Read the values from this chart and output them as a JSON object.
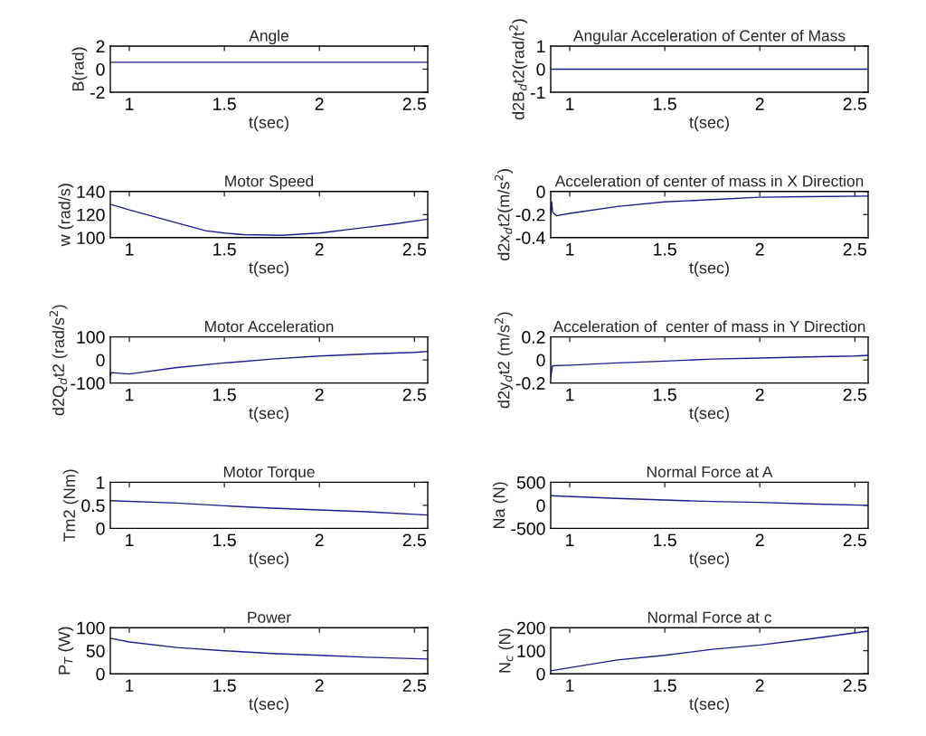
{
  "chart_data": [
    {
      "type": "line",
      "title": "Angle",
      "xlabel": "t(sec)",
      "ylabel": "B(rad)",
      "color": "#1c1c8c",
      "x": [
        0.9,
        2.57
      ],
      "values": [
        0.6,
        0.6
      ],
      "xlim": [
        0.9,
        2.57
      ],
      "xticks": [
        1,
        1.5,
        2,
        2.5
      ],
      "ylim": [
        -2,
        2
      ],
      "yticks": [
        -2,
        0,
        2
      ]
    },
    {
      "type": "line",
      "title": "Angular Acceleration of Center of Mass",
      "xlabel": "t(sec)",
      "ylabel": "d2B$_{d}$t2(rad/t$^{2}$)",
      "color": "#1c1c8c",
      "x": [
        0.9,
        2.57
      ],
      "values": [
        0,
        0
      ],
      "xlim": [
        0.9,
        2.57
      ],
      "xticks": [
        1,
        1.5,
        2,
        2.5
      ],
      "ylim": [
        -1,
        1
      ],
      "yticks": [
        -1,
        0,
        1
      ]
    },
    {
      "type": "line",
      "title": "Motor Speed",
      "xlabel": "t(sec)",
      "ylabel": "w (rad/s)",
      "color": "#1c1c8c",
      "x": [
        0.9,
        1.0,
        1.2,
        1.4,
        1.5,
        1.6,
        1.8,
        2.0,
        2.2,
        2.4,
        2.57
      ],
      "values": [
        129,
        124,
        115,
        106,
        104,
        102.6,
        102,
        104,
        108,
        112,
        116
      ],
      "xlim": [
        0.9,
        2.57
      ],
      "xticks": [
        1,
        1.5,
        2,
        2.5
      ],
      "ylim": [
        100,
        140
      ],
      "yticks": [
        100,
        120,
        140
      ]
    },
    {
      "type": "line",
      "title": "Acceleration of center of mass in X Direction",
      "xlabel": "t(sec)",
      "ylabel": "d2x$_{d}$t2(m/s$^{2}$)",
      "color": "#1c1c8c",
      "x": [
        0.9,
        0.905,
        0.91,
        0.93,
        1.0,
        1.25,
        1.5,
        1.75,
        2.0,
        2.25,
        2.57
      ],
      "values": [
        -0.2,
        -0.09,
        -0.18,
        -0.21,
        -0.19,
        -0.13,
        -0.09,
        -0.07,
        -0.05,
        -0.045,
        -0.04
      ],
      "xlim": [
        0.9,
        2.57
      ],
      "xticks": [
        1,
        1.5,
        2,
        2.5
      ],
      "ylim": [
        -0.4,
        0
      ],
      "yticks": [
        -0.4,
        -0.2,
        0
      ]
    },
    {
      "type": "line",
      "title": "Motor Acceleration",
      "xlabel": "t(sec)",
      "ylabel": "d2Q$_{d}$t2 (rad/s$^{2}$)",
      "color": "#1c1c8c",
      "x": [
        0.9,
        0.905,
        1.0,
        1.25,
        1.5,
        1.75,
        2.0,
        2.25,
        2.5,
        2.57
      ],
      "values": [
        -72,
        -55,
        -61,
        -33,
        -13,
        4,
        17,
        26,
        33,
        37
      ],
      "xlim": [
        0.9,
        2.57
      ],
      "xticks": [
        1,
        1.5,
        2,
        2.5
      ],
      "ylim": [
        -100,
        100
      ],
      "yticks": [
        -100,
        0,
        100
      ]
    },
    {
      "type": "line",
      "title": "Acceleration of  center of mass in Y Direction",
      "xlabel": "t(sec)",
      "ylabel": "d2y$_{d}$t2 (m/s$^{2}$)",
      "color": "#1c1c8c",
      "x": [
        0.9,
        0.91,
        1.0,
        1.25,
        1.5,
        1.75,
        2.0,
        2.25,
        2.5,
        2.57
      ],
      "values": [
        -0.15,
        -0.05,
        -0.045,
        -0.026,
        -0.01,
        0.008,
        0.016,
        0.026,
        0.034,
        0.04
      ],
      "xlim": [
        0.9,
        2.57
      ],
      "xticks": [
        1,
        1.5,
        2,
        2.5
      ],
      "ylim": [
        -0.2,
        0.2
      ],
      "yticks": [
        -0.2,
        0,
        0.2
      ]
    },
    {
      "type": "line",
      "title": "Motor Torque",
      "xlabel": "t(sec)",
      "ylabel": "Tm2 (Nm)",
      "color": "#1c1c8c",
      "x": [
        0.9,
        1.25,
        1.5,
        1.75,
        2.0,
        2.25,
        2.57
      ],
      "values": [
        0.6,
        0.55,
        0.49,
        0.44,
        0.4,
        0.36,
        0.29
      ],
      "xlim": [
        0.9,
        2.57
      ],
      "xticks": [
        1,
        1.5,
        2,
        2.5
      ],
      "ylim": [
        0,
        1
      ],
      "yticks": [
        0,
        0.5,
        1
      ]
    },
    {
      "type": "line",
      "title": "Normal Force at A",
      "xlabel": "t(sec)",
      "ylabel": "Na (N)",
      "color": "#1c1c8c",
      "x": [
        0.9,
        1.25,
        1.5,
        1.75,
        2.0,
        2.25,
        2.57
      ],
      "values": [
        210,
        150,
        115,
        83,
        64,
        32,
        0
      ],
      "xlim": [
        0.9,
        2.57
      ],
      "xticks": [
        1,
        1.5,
        2,
        2.5
      ],
      "ylim": [
        -500,
        500
      ],
      "yticks": [
        -500,
        0,
        500
      ]
    },
    {
      "type": "line",
      "title": "Power",
      "xlabel": "t(sec)",
      "ylabel": "P$_{T}$ (W)",
      "color": "#1c1c8c",
      "x": [
        0.9,
        1.0,
        1.25,
        1.5,
        1.75,
        2.0,
        2.25,
        2.57
      ],
      "values": [
        77,
        69,
        57,
        50,
        44,
        40,
        36,
        32
      ],
      "xlim": [
        0.9,
        2.57
      ],
      "xticks": [
        1,
        1.5,
        2,
        2.5
      ],
      "ylim": [
        0,
        100
      ],
      "yticks": [
        0,
        50,
        100
      ]
    },
    {
      "type": "line",
      "title": "Normal Force at c",
      "xlabel": "t(sec)",
      "ylabel": "N$_{c}$ (N)",
      "color": "#1c1c8c",
      "x": [
        0.9,
        1.25,
        1.5,
        1.75,
        2.0,
        2.25,
        2.57
      ],
      "values": [
        13,
        60,
        80,
        106,
        125,
        150,
        185
      ],
      "xlim": [
        0.9,
        2.57
      ],
      "xticks": [
        1,
        1.5,
        2,
        2.5
      ],
      "ylim": [
        0,
        200
      ],
      "yticks": [
        0,
        100,
        200
      ]
    }
  ]
}
